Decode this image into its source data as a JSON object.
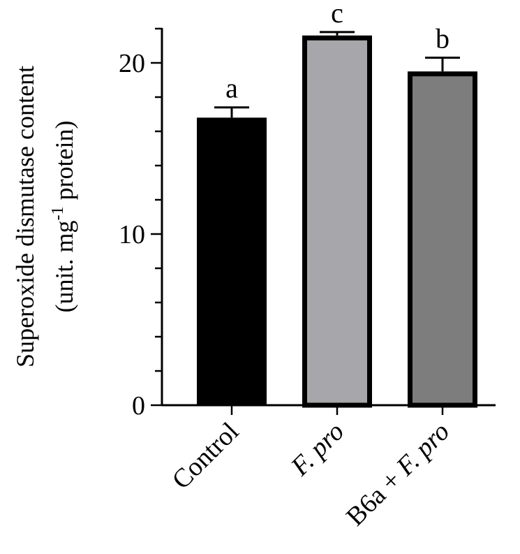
{
  "chart_data": {
    "type": "bar",
    "categories": [
      "Control",
      "F. pro",
      "B6a + F. pro"
    ],
    "category_parts": [
      [
        {
          "text": "Control",
          "italic": false
        }
      ],
      [
        {
          "text": "F. pro",
          "italic": true
        }
      ],
      [
        {
          "text": "B6a + ",
          "italic": false
        },
        {
          "text": "F. pro",
          "italic": true
        }
      ]
    ],
    "values": [
      16.8,
      21.6,
      19.5
    ],
    "errors": [
      0.6,
      0.2,
      0.8
    ],
    "significance": [
      "a",
      "c",
      "b"
    ],
    "bar_colors": [
      "#000000",
      "#a6a6ab",
      "#7d7d7d"
    ],
    "ylim": [
      0,
      22
    ],
    "yticks": [
      0,
      10,
      20
    ],
    "ylabel_line1": "Superoxide dismutase content",
    "ylabel_line2_prefix": "(unit. mg",
    "ylabel_line2_sup": "-1",
    "ylabel_line2_suffix": " protein)",
    "xlabel": "",
    "title": "",
    "grid": false
  }
}
